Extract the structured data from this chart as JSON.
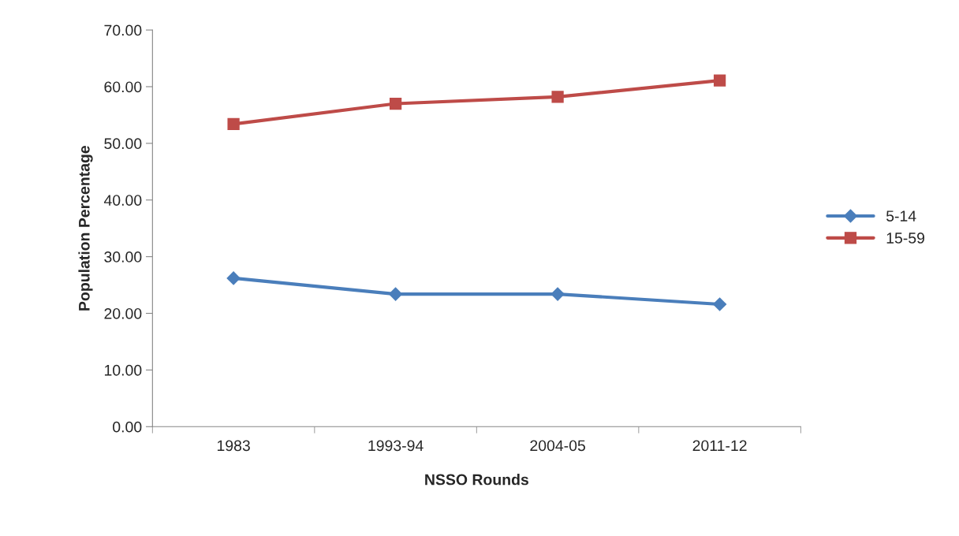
{
  "chart_data": {
    "type": "line",
    "xlabel": "NSSO Rounds",
    "ylabel": "Population Percentage",
    "categories": [
      "1983",
      "1993-94",
      "2004-05",
      "2011-12"
    ],
    "series": [
      {
        "name": "5-14",
        "color": "#4a7ebb",
        "marker": "diamond",
        "values": [
          26.2,
          23.4,
          23.4,
          21.6
        ]
      },
      {
        "name": "15-59",
        "color": "#be4b48",
        "marker": "square",
        "values": [
          53.4,
          57.0,
          58.2,
          61.1
        ]
      }
    ],
    "ylim": [
      0,
      70
    ],
    "yticks": [
      {
        "value": 0,
        "label": "0.00"
      },
      {
        "value": 10,
        "label": "10.00"
      },
      {
        "value": 20,
        "label": "20.00"
      },
      {
        "value": 30,
        "label": "30.00"
      },
      {
        "value": 40,
        "label": "40.00"
      },
      {
        "value": 50,
        "label": "50.00"
      },
      {
        "value": 60,
        "label": "60.00"
      },
      {
        "value": 70,
        "label": "70.00"
      }
    ],
    "grid": false,
    "legend": "right",
    "line_style": "solid"
  }
}
